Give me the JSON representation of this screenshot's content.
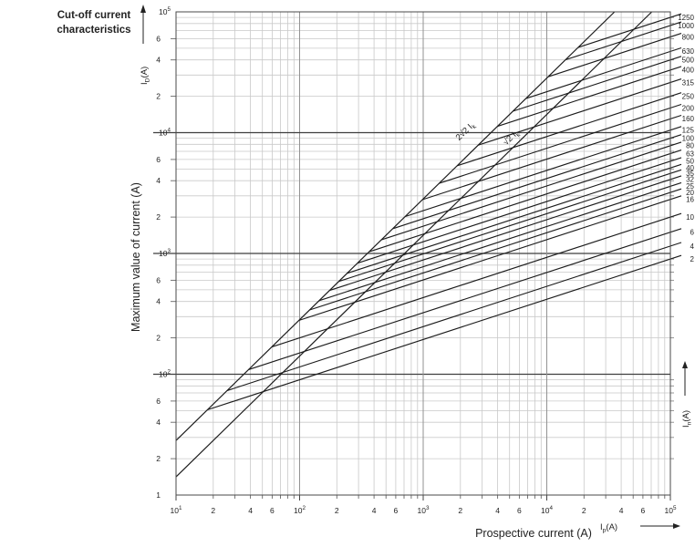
{
  "title": {
    "line1": "Cut-off current",
    "line2": "characteristics"
  },
  "axes": {
    "y_label": "Maximum value of current (A)",
    "x_label": "Prospective current (A)",
    "y_symbol": {
      "base": "I",
      "sub": "D",
      "unit": "(A)"
    },
    "x_symbol": {
      "base": "I",
      "sub": "p",
      "unit": "(A)"
    },
    "right_symbol": {
      "base": "I",
      "sub": "n",
      "unit": "(A)"
    },
    "x_ticks": [
      "10¹",
      "2",
      "4",
      "6",
      "10²",
      "2",
      "4",
      "6",
      "10³",
      "2",
      "4",
      "6",
      "10⁴",
      "2",
      "4",
      "6",
      "10⁵"
    ],
    "y_ticks": [
      "10⁵",
      "6",
      "4",
      "2",
      "10⁴",
      "6",
      "4",
      "2",
      "10³",
      "6",
      "4",
      "2",
      "10²",
      "6",
      "4",
      "2",
      "1"
    ]
  },
  "envelope_labels": [
    {
      "text": "2√2 I",
      "sub": "k"
    },
    {
      "text": "√2 I",
      "sub": "k"
    }
  ],
  "colors": {
    "grid_minor": "#c9c9c9",
    "grid_major_v": "#929292",
    "grid_major_h": "#3f3f3f",
    "frame": "#4a4a4a",
    "curve": "#1c1c1c",
    "text": "#222222"
  },
  "chart_data": {
    "type": "line",
    "title": "Cut-off current characteristics",
    "xlabel": "Prospective current (A)",
    "ylabel": "Maximum value of current (A)",
    "x_axis": {
      "scale": "log",
      "range": [
        10,
        100000
      ],
      "tick_labels": [
        "10¹",
        "2",
        "4",
        "6",
        "10²",
        "2",
        "4",
        "6",
        "10³",
        "2",
        "4",
        "6",
        "10⁴",
        "2",
        "4",
        "6",
        "10⁵"
      ]
    },
    "y_axis": {
      "scale": "log",
      "range": [
        10,
        100000
      ],
      "tick_labels": [
        "10⁵",
        "6",
        "4",
        "2",
        "10⁴",
        "6",
        "4",
        "2",
        "10³",
        "6",
        "4",
        "2",
        "10²",
        "6",
        "4",
        "2",
        "1"
      ]
    },
    "grid": "log minor+major, both axes",
    "envelope_lines": [
      {
        "label": "2√2·Ik",
        "multiplier": 2.828,
        "slope_log_log": 1
      },
      {
        "label": "√2·Ik",
        "multiplier": 1.414,
        "slope_log_log": 1
      }
    ],
    "series_note": "Each rated-current line branches off the 2√2·Ik envelope and rises with slope 1/3 (log-log) to its cut-off value at 100 kA prospective current; label at right edge is the rated current In (A).",
    "series": [
      {
        "rating_A": 1250,
        "cutoff_at_100kA_A": 90000
      },
      {
        "rating_A": 1000,
        "cutoff_at_100kA_A": 77000
      },
      {
        "rating_A": 800,
        "cutoff_at_100kA_A": 62000
      },
      {
        "rating_A": 630,
        "cutoff_at_100kA_A": 47000
      },
      {
        "rating_A": 500,
        "cutoff_at_100kA_A": 40000
      },
      {
        "rating_A": 400,
        "cutoff_at_100kA_A": 33000
      },
      {
        "rating_A": 315,
        "cutoff_at_100kA_A": 26000
      },
      {
        "rating_A": 250,
        "cutoff_at_100kA_A": 20000
      },
      {
        "rating_A": 200,
        "cutoff_at_100kA_A": 16000
      },
      {
        "rating_A": 160,
        "cutoff_at_100kA_A": 13000
      },
      {
        "rating_A": 125,
        "cutoff_at_100kA_A": 10500
      },
      {
        "rating_A": 100,
        "cutoff_at_100kA_A": 9000
      },
      {
        "rating_A": 80,
        "cutoff_at_100kA_A": 7800
      },
      {
        "rating_A": 63,
        "cutoff_at_100kA_A": 6700
      },
      {
        "rating_A": 50,
        "cutoff_at_100kA_A": 5800
      },
      {
        "rating_A": 40,
        "cutoff_at_100kA_A": 5100
      },
      {
        "rating_A": 35,
        "cutoff_at_100kA_A": 4600
      },
      {
        "rating_A": 32,
        "cutoff_at_100kA_A": 4100
      },
      {
        "rating_A": 25,
        "cutoff_at_100kA_A": 3600
      },
      {
        "rating_A": 20,
        "cutoff_at_100kA_A": 3200
      },
      {
        "rating_A": 16,
        "cutoff_at_100kA_A": 2800
      },
      {
        "rating_A": 10,
        "cutoff_at_100kA_A": 2000
      },
      {
        "rating_A": 6,
        "cutoff_at_100kA_A": 1500
      },
      {
        "rating_A": 4,
        "cutoff_at_100kA_A": 1150
      },
      {
        "rating_A": 2,
        "cutoff_at_100kA_A": 900
      }
    ]
  }
}
